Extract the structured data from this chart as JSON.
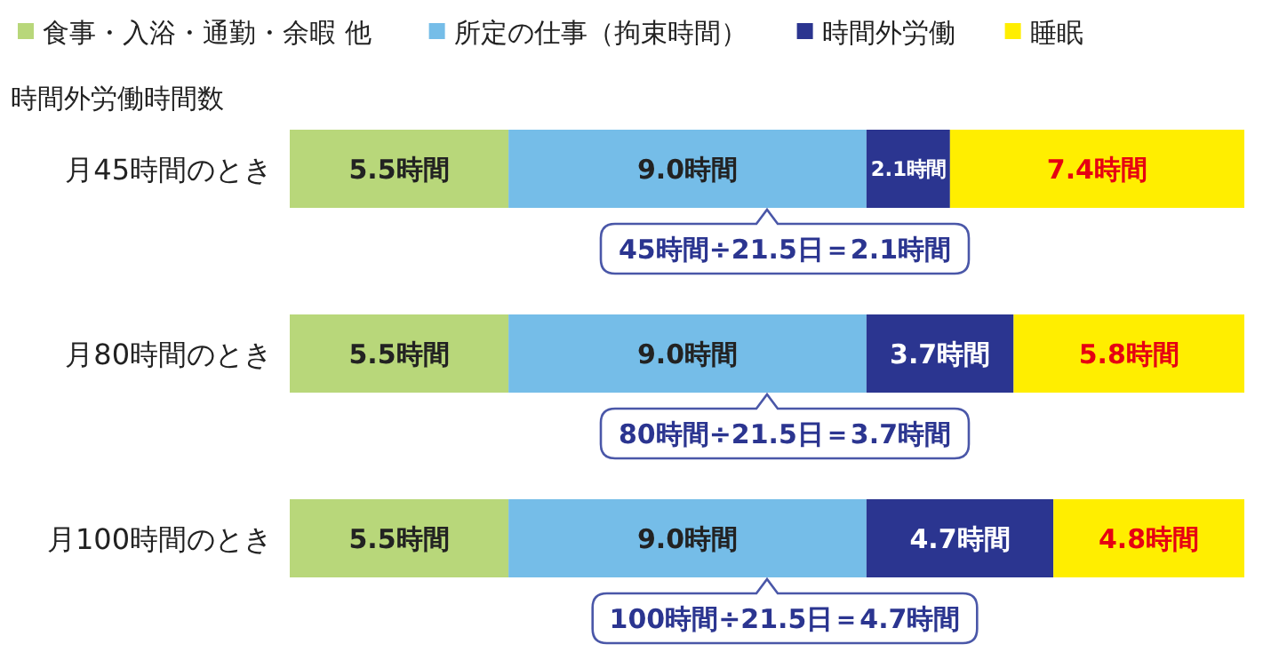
{
  "chart_data": {
    "type": "bar",
    "orientation": "horizontal",
    "stacked": true,
    "ylabel": "時間外労働時間数",
    "categories": [
      "月45時間のとき",
      "月80時間のとき",
      "月100時間のとき"
    ],
    "xlim": [
      0,
      24
    ],
    "tick_labels": "y",
    "legend": "top",
    "data_labels": false,
    "series": [
      {
        "name": "食事・入浴・通勤・余暇 他",
        "color": "#b8d77a",
        "values": [
          5.5,
          5.5,
          5.5
        ],
        "value_labels": [
          "5.5時間",
          "5.5時間",
          "5.5時間"
        ]
      },
      {
        "name": "所定の仕事（拘束時間）",
        "color": "#75bde8",
        "values": [
          9.0,
          9.0,
          9.0
        ],
        "value_labels": [
          "9.0時間",
          "9.0時間",
          "9.0時間"
        ]
      },
      {
        "name": "時間外労働",
        "color": "#2b3590",
        "values": [
          2.1,
          3.7,
          4.7
        ],
        "value_labels": [
          "2.1時間",
          "3.7時間",
          "4.7時間"
        ]
      },
      {
        "name": "睡眠",
        "color": "#ffee00",
        "values": [
          7.4,
          5.8,
          4.8
        ],
        "value_labels": [
          "7.4時間",
          "5.8時間",
          "4.8時間"
        ]
      }
    ],
    "annotations": [
      "45時間÷21.5日＝2.1時間",
      "80時間÷21.5日＝3.7時間",
      "100時間÷21.5日＝4.7時間"
    ]
  }
}
